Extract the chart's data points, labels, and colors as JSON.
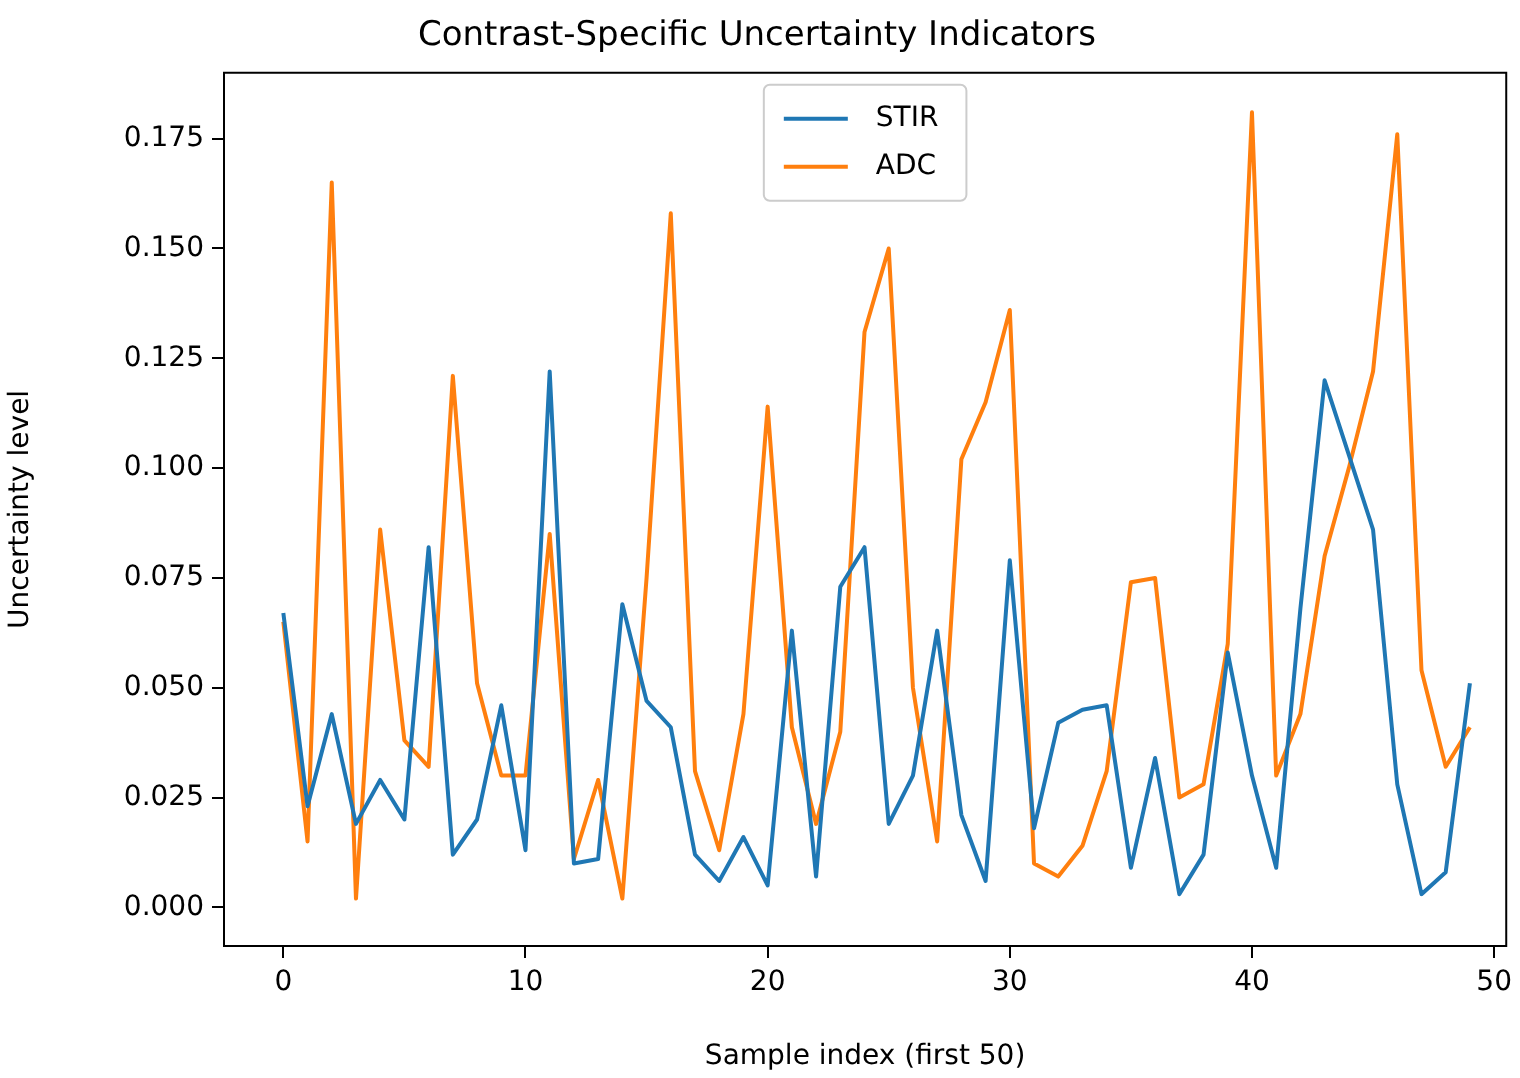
{
  "chart_data": {
    "type": "line",
    "title": "Contrast-Specific Uncertainty Indicators",
    "xlabel": "Sample index (first 50)",
    "ylabel": "Uncertainty level",
    "x": [
      0,
      1,
      2,
      3,
      4,
      5,
      6,
      7,
      8,
      9,
      10,
      11,
      12,
      13,
      14,
      15,
      16,
      17,
      18,
      19,
      20,
      21,
      22,
      23,
      24,
      25,
      26,
      27,
      28,
      29,
      30,
      31,
      32,
      33,
      34,
      35,
      36,
      37,
      38,
      39,
      40,
      41,
      42,
      43,
      44,
      45,
      46,
      47,
      48,
      49
    ],
    "series": [
      {
        "name": "STIR",
        "color": "#1f77b4",
        "values": [
          0.067,
          0.023,
          0.044,
          0.019,
          0.029,
          0.02,
          0.082,
          0.012,
          0.02,
          0.046,
          0.013,
          0.122,
          0.01,
          0.011,
          0.069,
          0.047,
          0.041,
          0.012,
          0.006,
          0.016,
          0.005,
          0.063,
          0.007,
          0.073,
          0.082,
          0.019,
          0.03,
          0.063,
          0.021,
          0.006,
          0.079,
          0.018,
          0.042,
          0.045,
          0.046,
          0.009,
          0.034,
          0.003,
          0.012,
          0.058,
          0.03,
          0.009,
          0.068,
          0.12,
          0.103,
          0.086,
          0.028,
          0.003,
          0.008,
          0.051
        ]
      },
      {
        "name": "ADC",
        "color": "#ff7f0e",
        "values": [
          0.065,
          0.015,
          0.165,
          0.002,
          0.086,
          0.038,
          0.032,
          0.121,
          0.051,
          0.03,
          0.03,
          0.085,
          0.011,
          0.029,
          0.002,
          0.075,
          0.158,
          0.031,
          0.013,
          0.044,
          0.114,
          0.041,
          0.019,
          0.04,
          0.131,
          0.15,
          0.05,
          0.015,
          0.102,
          0.115,
          0.136,
          0.01,
          0.007,
          0.014,
          0.031,
          0.074,
          0.075,
          0.025,
          0.028,
          0.06,
          0.181,
          0.03,
          0.044,
          0.08,
          0.1,
          0.122,
          0.176,
          0.054,
          0.032,
          0.041
        ]
      }
    ],
    "xlim": [
      -2.45,
      50.5
    ],
    "xticks": [
      0,
      10,
      20,
      30,
      40,
      50
    ],
    "ylim": [
      -0.0088,
      0.19
    ],
    "yticks": [
      {
        "value": 0,
        "label": "0.000"
      },
      {
        "value": 0.025,
        "label": "0.025"
      },
      {
        "value": 0.05,
        "label": "0.050"
      },
      {
        "value": 0.075,
        "label": "0.075"
      },
      {
        "value": 0.1,
        "label": "0.100"
      },
      {
        "value": 0.125,
        "label": "0.125"
      },
      {
        "value": 0.15,
        "label": "0.150"
      },
      {
        "value": 0.175,
        "label": "0.175"
      }
    ],
    "grid": false,
    "legend": "top",
    "marker": "none",
    "line_style": "solid"
  }
}
